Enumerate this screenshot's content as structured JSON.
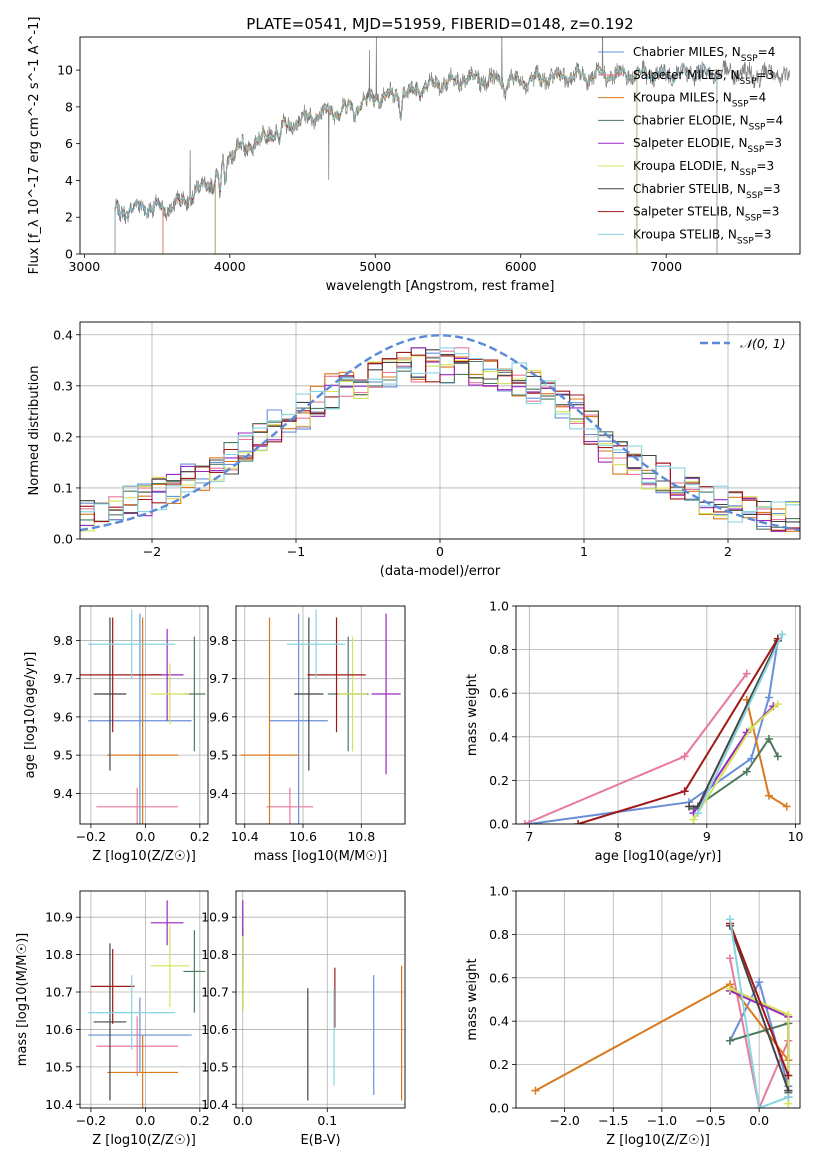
{
  "figure_title": "PLATE=0541, MJD=51959, FIBERID=0148, z=0.192",
  "palette": [
    "#6a8fd8",
    "#e8799d",
    "#d97a1e",
    "#4d7a5e",
    "#9a27c2",
    "#d4e35a",
    "#444444",
    "#a01818",
    "#88d4e0"
  ],
  "chart_data": [
    {
      "id": "spectrum",
      "type": "line",
      "xlabel": "wavelength [Angstrom, rest frame]",
      "ylabel": "Flux [f_λ 10^-17 erg cm^-2 s^-1 A^-1]",
      "xlim": [
        2970,
        7920
      ],
      "ylim": [
        0,
        11.8
      ],
      "xticks": [
        3000,
        4000,
        5000,
        6000,
        7000
      ],
      "yticks": [
        0,
        2,
        4,
        6,
        8,
        10
      ],
      "grid": false,
      "legend_position": "bottom-right",
      "observed": {
        "x_range": [
          3210,
          7850
        ],
        "nodes": [
          [
            3210,
            2.2
          ],
          [
            3400,
            2.6
          ],
          [
            3550,
            2.4
          ],
          [
            3700,
            3.0
          ],
          [
            3800,
            3.6
          ],
          [
            3900,
            4.0
          ],
          [
            4000,
            5.5
          ],
          [
            4200,
            6.2
          ],
          [
            4400,
            7.0
          ],
          [
            4600,
            7.6
          ],
          [
            4800,
            7.9
          ],
          [
            5000,
            8.5
          ],
          [
            5200,
            8.7
          ],
          [
            5400,
            9.2
          ],
          [
            5600,
            9.5
          ],
          [
            5800,
            9.5
          ],
          [
            6000,
            9.4
          ],
          [
            6200,
            9.6
          ],
          [
            6500,
            9.7
          ],
          [
            6800,
            9.8
          ],
          [
            7000,
            9.7
          ],
          [
            7200,
            9.9
          ],
          [
            7500,
            9.8
          ],
          [
            7850,
            9.7
          ]
        ],
        "dips": [
          [
            3933,
            1.2
          ],
          [
            3968,
            1.2
          ],
          [
            4102,
            0.6
          ],
          [
            4340,
            0.7
          ],
          [
            4861,
            0.5
          ],
          [
            5175,
            1.0
          ],
          [
            5890,
            0.6
          ]
        ],
        "spikes": [
          [
            3727,
            3.0
          ],
          [
            4680,
            -4.0
          ],
          [
            4960,
            2.5
          ],
          [
            5007,
            4.0
          ],
          [
            5870,
            3.0
          ],
          [
            6563,
            3.0
          ]
        ]
      },
      "models": [
        {
          "name": "Chabrier MILES",
          "nssp": "4",
          "color": "#6a8fd8",
          "x_range": [
            3540,
            6800
          ]
        },
        {
          "name": "Salpeter MILES",
          "nssp": "3",
          "color": "#e8799d",
          "x_range": [
            3540,
            6800
          ]
        },
        {
          "name": "Kroupa MILES",
          "nssp": "4",
          "color": "#d97a1e",
          "x_range": [
            3540,
            6800
          ]
        },
        {
          "name": "Chabrier ELODIE",
          "nssp": "4",
          "color": "#4d7a5e",
          "x_range": [
            3900,
            6800
          ]
        },
        {
          "name": "Salpeter ELODIE",
          "nssp": "3",
          "color": "#9a27c2",
          "x_range": [
            3900,
            6800
          ]
        },
        {
          "name": "Kroupa ELODIE",
          "nssp": "3",
          "color": "#d4e35a",
          "x_range": [
            3900,
            6800
          ]
        },
        {
          "name": "Chabrier STELIB",
          "nssp": "3",
          "color": "#444444",
          "x_range": [
            3210,
            7350
          ]
        },
        {
          "name": "Salpeter STELIB",
          "nssp": "3",
          "color": "#a01818",
          "x_range": [
            3210,
            7350
          ]
        },
        {
          "name": "Kroupa STELIB",
          "nssp": "3",
          "color": "#88d4e0",
          "x_range": [
            3210,
            7350
          ]
        }
      ],
      "legend_prefix_nssp": "N",
      "legend_sub_nssp": "SSP"
    },
    {
      "id": "residuals",
      "type": "area",
      "xlabel": "(data-model)/error",
      "ylabel": "Normed distribution",
      "xlim": [
        -2.5,
        2.5
      ],
      "ylim": [
        0,
        0.425
      ],
      "xticks": [
        -2,
        -1,
        0,
        1,
        2
      ],
      "yticks": [
        0.0,
        0.1,
        0.2,
        0.3,
        0.4
      ],
      "grid": true,
      "legend_position": "top-right",
      "legend_label": "𝒩(0, 1)",
      "normal_color": "#5b8ad6",
      "bins": {
        "start": -2.5,
        "width": 0.1,
        "count": 50
      },
      "histogram_envelope": [
        0.04,
        0.05,
        0.06,
        0.07,
        0.08,
        0.09,
        0.1,
        0.12,
        0.13,
        0.14,
        0.16,
        0.18,
        0.2,
        0.22,
        0.24,
        0.25,
        0.27,
        0.29,
        0.3,
        0.31,
        0.32,
        0.33,
        0.34,
        0.34,
        0.34,
        0.34,
        0.34,
        0.33,
        0.33,
        0.32,
        0.31,
        0.3,
        0.29,
        0.27,
        0.25,
        0.22,
        0.18,
        0.16,
        0.15,
        0.13,
        0.12,
        0.11,
        0.09,
        0.08,
        0.07,
        0.06,
        0.06,
        0.05,
        0.04,
        0.04
      ]
    },
    {
      "id": "age_vs_Z",
      "type": "scatter",
      "xlabel": "Z [log10(Z/Z☉)]",
      "ylabel": "age  [log10(age/yr)]",
      "xlim": [
        -0.24,
        0.23
      ],
      "ylim": [
        9.32,
        9.89
      ],
      "xticks": [
        -0.2,
        0.0,
        0.2
      ],
      "yticks": [
        9.4,
        9.5,
        9.6,
        9.7,
        9.8
      ],
      "grid": true,
      "points": [
        {
          "x": -0.02,
          "y": 9.59,
          "xerr": 0.19,
          "yerr": 0.28,
          "color": "#6a8fd8"
        },
        {
          "x": -0.03,
          "y": 9.365,
          "xerr": 0.15,
          "yerr": 0.05,
          "color": "#e8799d"
        },
        {
          "x": -0.01,
          "y": 9.5,
          "xerr": 0.13,
          "yerr": 0.36,
          "color": "#d97a1e"
        },
        {
          "x": 0.18,
          "y": 9.66,
          "xerr": 0.04,
          "yerr": 0.15,
          "color": "#4d7a5e"
        },
        {
          "x": 0.08,
          "y": 9.71,
          "xerr": 0.06,
          "yerr": 0.12,
          "color": "#9a27c2"
        },
        {
          "x": 0.09,
          "y": 9.66,
          "xerr": 0.07,
          "yerr": 0.08,
          "color": "#d4e35a"
        },
        {
          "x": -0.13,
          "y": 9.66,
          "xerr": 0.06,
          "yerr": 0.2,
          "color": "#444444"
        },
        {
          "x": -0.12,
          "y": 9.71,
          "xerr": 0.18,
          "yerr": 0.15,
          "color": "#a01818"
        },
        {
          "x": -0.05,
          "y": 9.79,
          "xerr": 0.16,
          "yerr": 0.09,
          "color": "#88d4e0"
        }
      ]
    },
    {
      "id": "age_vs_mass",
      "type": "scatter",
      "xlabel": "mass [log10(M/M☉)]",
      "ylabel": "",
      "xlim": [
        10.37,
        10.95
      ],
      "ylim": [
        9.32,
        9.89
      ],
      "xticks": [
        10.4,
        10.6,
        10.8
      ],
      "yticks": [
        9.4,
        9.5,
        9.6,
        9.7,
        9.8
      ],
      "grid": true,
      "points": [
        {
          "x": 10.585,
          "y": 9.59,
          "xerr": 0.1,
          "yerr": 0.28,
          "color": "#6a8fd8"
        },
        {
          "x": 10.555,
          "y": 9.365,
          "xerr": 0.08,
          "yerr": 0.05,
          "color": "#e8799d"
        },
        {
          "x": 10.485,
          "y": 9.5,
          "xerr": 0.1,
          "yerr": 0.36,
          "color": "#d97a1e"
        },
        {
          "x": 10.755,
          "y": 9.66,
          "xerr": 0.07,
          "yerr": 0.15,
          "color": "#4d7a5e"
        },
        {
          "x": 10.885,
          "y": 9.66,
          "xerr": 0.05,
          "yerr": 0.21,
          "color": "#9a27c2"
        },
        {
          "x": 10.77,
          "y": 9.66,
          "xerr": 0.05,
          "yerr": 0.15,
          "color": "#d4e35a"
        },
        {
          "x": 10.62,
          "y": 9.66,
          "xerr": 0.05,
          "yerr": 0.2,
          "color": "#444444"
        },
        {
          "x": 10.715,
          "y": 9.71,
          "xerr": 0.1,
          "yerr": 0.15,
          "color": "#a01818"
        },
        {
          "x": 10.645,
          "y": 9.79,
          "xerr": 0.1,
          "yerr": 0.09,
          "color": "#88d4e0"
        }
      ]
    },
    {
      "id": "massweight_vs_age",
      "type": "line",
      "xlabel": "age  [log10(age/yr)]",
      "ylabel": "mass weight",
      "xlim": [
        6.85,
        10.05
      ],
      "ylim": [
        0,
        1
      ],
      "xticks": [
        7,
        8,
        9,
        10
      ],
      "yticks": [
        0.0,
        0.2,
        0.4,
        0.6,
        0.8,
        1.0
      ],
      "grid": true,
      "series": [
        {
          "color": "#6a8fd8",
          "x": [
            7.0,
            8.8,
            9.5,
            9.7,
            9.8
          ],
          "y": [
            0.0,
            0.1,
            0.3,
            0.58,
            0.84
          ]
        },
        {
          "color": "#e8799d",
          "x": [
            6.95,
            8.75,
            9.45
          ],
          "y": [
            0.0,
            0.31,
            0.69
          ]
        },
        {
          "color": "#d97a1e",
          "x": [
            9.45,
            9.7,
            9.9
          ],
          "y": [
            0.57,
            0.13,
            0.08
          ]
        },
        {
          "color": "#4d7a5e",
          "x": [
            8.85,
            9.45,
            9.7,
            9.8
          ],
          "y": [
            0.07,
            0.24,
            0.39,
            0.31
          ]
        },
        {
          "color": "#9a27c2",
          "x": [
            8.85,
            9.45,
            9.75
          ],
          "y": [
            0.05,
            0.42,
            0.54
          ]
        },
        {
          "color": "#d4e35a",
          "x": [
            8.85,
            9.5,
            9.8
          ],
          "y": [
            0.02,
            0.44,
            0.55
          ]
        },
        {
          "color": "#444444",
          "x": [
            8.8,
            8.9,
            9.8
          ],
          "y": [
            0.08,
            0.08,
            0.84
          ]
        },
        {
          "color": "#a01818",
          "x": [
            7.55,
            8.75,
            9.8
          ],
          "y": [
            0.0,
            0.15,
            0.85
          ]
        },
        {
          "color": "#88d4e0",
          "x": [
            8.9,
            9.85
          ],
          "y": [
            0.05,
            0.87
          ]
        }
      ]
    },
    {
      "id": "mass_vs_Z",
      "type": "scatter",
      "xlabel": "Z [log10(Z/Z☉)]",
      "ylabel": "mass [log10(M/M☉)]",
      "xlim": [
        -0.24,
        0.23
      ],
      "ylim": [
        10.39,
        10.97
      ],
      "xticks": [
        -0.2,
        0.0,
        0.2
      ],
      "yticks": [
        10.4,
        10.5,
        10.6,
        10.7,
        10.8,
        10.9
      ],
      "grid": true,
      "points": [
        {
          "x": -0.02,
          "y": 10.585,
          "xerr": 0.19,
          "yerr": 0.1,
          "color": "#6a8fd8"
        },
        {
          "x": -0.03,
          "y": 10.555,
          "xerr": 0.15,
          "yerr": 0.08,
          "color": "#e8799d"
        },
        {
          "x": -0.01,
          "y": 10.485,
          "xerr": 0.13,
          "yerr": 0.1,
          "color": "#d97a1e"
        },
        {
          "x": 0.18,
          "y": 10.755,
          "xerr": 0.04,
          "yerr": 0.11,
          "color": "#4d7a5e"
        },
        {
          "x": 0.08,
          "y": 10.885,
          "xerr": 0.06,
          "yerr": 0.06,
          "color": "#9a27c2"
        },
        {
          "x": 0.09,
          "y": 10.77,
          "xerr": 0.07,
          "yerr": 0.11,
          "color": "#d4e35a"
        },
        {
          "x": -0.13,
          "y": 10.62,
          "xerr": 0.06,
          "yerr": 0.21,
          "color": "#444444"
        },
        {
          "x": -0.12,
          "y": 10.715,
          "xerr": 0.08,
          "yerr": 0.1,
          "color": "#a01818"
        },
        {
          "x": -0.05,
          "y": 10.645,
          "xerr": 0.16,
          "yerr": 0.1,
          "color": "#88d4e0"
        }
      ]
    },
    {
      "id": "mass_vs_EBV",
      "type": "scatter",
      "xlabel": "E(B-V)",
      "ylabel": "",
      "xlim": [
        -0.008,
        0.192
      ],
      "ylim": [
        10.39,
        10.97
      ],
      "xticks": [
        0.0,
        0.1
      ],
      "yticks": [
        10.4,
        10.5,
        10.6,
        10.7,
        10.8,
        10.9
      ],
      "grid": true,
      "points": [
        {
          "x": 0.155,
          "y": 10.585,
          "yerr": 0.16,
          "color": "#6a8fd8"
        },
        {
          "x": 0.0,
          "y": 10.8,
          "yerr": 0.12,
          "color": "#e8799d"
        },
        {
          "x": 0.188,
          "y": 10.59,
          "yerr": 0.18,
          "color": "#d97a1e"
        },
        {
          "x": 0.0,
          "y": 10.76,
          "yerr": 0.11,
          "color": "#4d7a5e"
        },
        {
          "x": 0.0,
          "y": 10.855,
          "yerr": 0.09,
          "color": "#9a27c2"
        },
        {
          "x": 0.0,
          "y": 10.75,
          "yerr": 0.1,
          "color": "#d4e35a"
        },
        {
          "x": 0.077,
          "y": 10.56,
          "yerr": 0.15,
          "color": "#444444"
        },
        {
          "x": 0.109,
          "y": 10.685,
          "yerr": 0.08,
          "color": "#a01818"
        },
        {
          "x": 0.108,
          "y": 10.58,
          "yerr": 0.13,
          "color": "#88d4e0"
        }
      ]
    },
    {
      "id": "massweight_vs_Z",
      "type": "line",
      "xlabel": "Z [log10(Z/Z☉)]",
      "ylabel": "mass weight",
      "xlim": [
        -2.5,
        0.42
      ],
      "ylim": [
        0,
        1
      ],
      "xticks": [
        -2.0,
        -1.5,
        -1.0,
        -0.5,
        0.0
      ],
      "yticks": [
        0.0,
        0.2,
        0.4,
        0.6,
        0.8,
        1.0
      ],
      "grid": true,
      "series": [
        {
          "color": "#6a8fd8",
          "x": [
            -0.3,
            0.0,
            0.3
          ],
          "y": [
            0.31,
            0.58,
            0.1
          ]
        },
        {
          "color": "#e8799d",
          "x": [
            -0.3,
            0.0,
            0.3
          ],
          "y": [
            0.69,
            0.0,
            0.31
          ]
        },
        {
          "color": "#d97a1e",
          "x": [
            -2.3,
            -0.3,
            0.3
          ],
          "y": [
            0.08,
            0.57,
            0.22
          ]
        },
        {
          "color": "#4d7a5e",
          "x": [
            -0.3,
            0.3,
            0.3
          ],
          "y": [
            0.31,
            0.39,
            0.07
          ]
        },
        {
          "color": "#9a27c2",
          "x": [
            -0.3,
            0.3,
            0.3
          ],
          "y": [
            0.54,
            0.42,
            0.05
          ]
        },
        {
          "color": "#d4e35a",
          "x": [
            -0.3,
            0.3,
            0.3
          ],
          "y": [
            0.55,
            0.43,
            0.02
          ]
        },
        {
          "color": "#444444",
          "x": [
            -0.3,
            0.3,
            0.3
          ],
          "y": [
            0.84,
            0.08,
            0.08
          ]
        },
        {
          "color": "#a01818",
          "x": [
            -0.3,
            0.3
          ],
          "y": [
            0.85,
            0.15
          ]
        },
        {
          "color": "#88d4e0",
          "x": [
            -0.3,
            0.0,
            0.3
          ],
          "y": [
            0.87,
            0.0,
            0.05
          ]
        }
      ]
    }
  ]
}
